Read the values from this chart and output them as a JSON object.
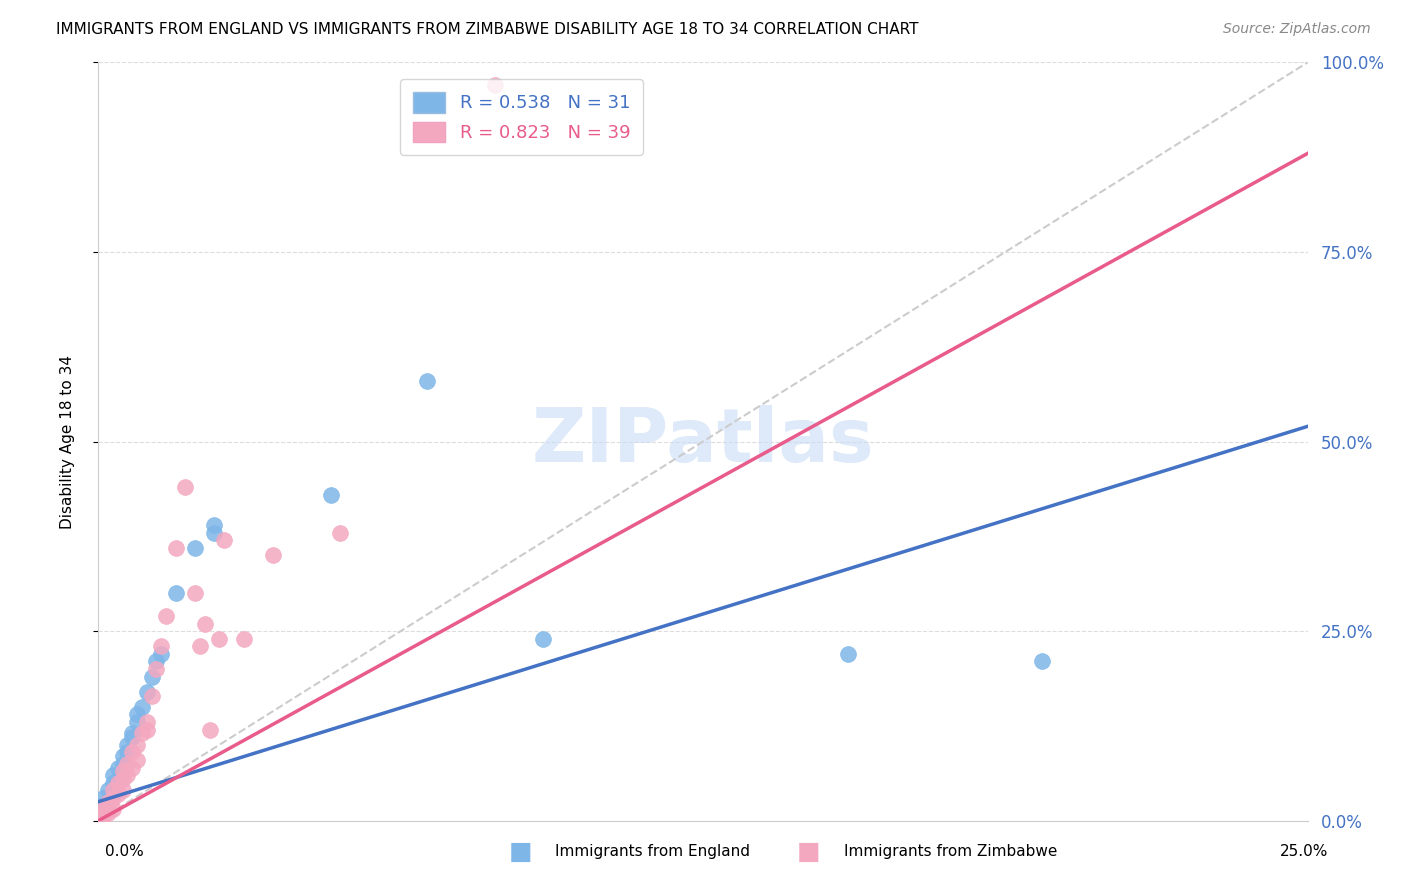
{
  "title": "IMMIGRANTS FROM ENGLAND VS IMMIGRANTS FROM ZIMBABWE DISABILITY AGE 18 TO 34 CORRELATION CHART",
  "source": "Source: ZipAtlas.com",
  "ylabel": "Disability Age 18 to 34",
  "england_color": "#7EB6E8",
  "zimbabwe_color": "#F4A8C0",
  "england_line_color": "#4472C4",
  "zimbabwe_line_color": "#E85B8A",
  "diagonal_color": "#CCCCCC",
  "watermark": "ZIPatlas",
  "eng_x": [
    0.001,
    0.001,
    0.002,
    0.002,
    0.003,
    0.003,
    0.003,
    0.004,
    0.004,
    0.005,
    0.005,
    0.006,
    0.006,
    0.007,
    0.007,
    0.008,
    0.008,
    0.009,
    0.01,
    0.011,
    0.012,
    0.013,
    0.016,
    0.02,
    0.024,
    0.024,
    0.048,
    0.068,
    0.092,
    0.155,
    0.195
  ],
  "eng_y": [
    0.02,
    0.03,
    0.025,
    0.04,
    0.035,
    0.05,
    0.06,
    0.055,
    0.07,
    0.075,
    0.085,
    0.09,
    0.1,
    0.11,
    0.115,
    0.13,
    0.14,
    0.15,
    0.17,
    0.19,
    0.21,
    0.22,
    0.3,
    0.36,
    0.38,
    0.39,
    0.43,
    0.58,
    0.24,
    0.22,
    0.21
  ],
  "zim_x": [
    0.001,
    0.001,
    0.001,
    0.002,
    0.002,
    0.002,
    0.003,
    0.003,
    0.003,
    0.004,
    0.004,
    0.005,
    0.005,
    0.005,
    0.006,
    0.006,
    0.007,
    0.007,
    0.008,
    0.008,
    0.009,
    0.01,
    0.01,
    0.011,
    0.012,
    0.013,
    0.014,
    0.016,
    0.018,
    0.02,
    0.021,
    0.022,
    0.023,
    0.025,
    0.026,
    0.03,
    0.036,
    0.05,
    0.082
  ],
  "zim_y": [
    0.005,
    0.01,
    0.015,
    0.01,
    0.02,
    0.025,
    0.015,
    0.03,
    0.04,
    0.035,
    0.05,
    0.04,
    0.055,
    0.065,
    0.06,
    0.075,
    0.07,
    0.09,
    0.08,
    0.1,
    0.115,
    0.13,
    0.12,
    0.165,
    0.2,
    0.23,
    0.27,
    0.36,
    0.44,
    0.3,
    0.23,
    0.26,
    0.12,
    0.24,
    0.37,
    0.24,
    0.35,
    0.38,
    0.97
  ],
  "eng_line_x": [
    0.0,
    0.25
  ],
  "eng_line_y": [
    0.025,
    0.52
  ],
  "zim_line_x": [
    0.0,
    0.25
  ],
  "zim_line_y": [
    0.0,
    0.88
  ],
  "xlim": [
    0.0,
    0.25
  ],
  "ylim": [
    0.0,
    1.0
  ],
  "xticks": [
    0.0,
    0.05,
    0.1,
    0.15,
    0.2,
    0.25
  ],
  "yticks": [
    0.0,
    0.25,
    0.5,
    0.75,
    1.0
  ],
  "ytick_labels": [
    "0.0%",
    "25.0%",
    "50.0%",
    "75.0%",
    "100.0%"
  ],
  "background_color": "#FFFFFF",
  "grid_color": "#DDDDDD"
}
